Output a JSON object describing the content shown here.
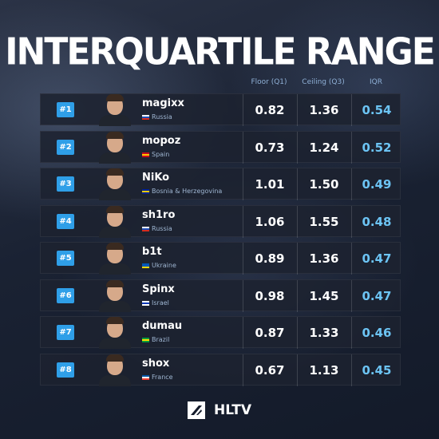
{
  "title": "INTERQUARTILE RANGE",
  "columns": {
    "floor": "Floor (Q1)",
    "ceiling": "Ceiling (Q3)",
    "iqr": "IQR"
  },
  "players": [
    {
      "rank": "#1",
      "name": "magixx",
      "country": "Russia",
      "floor": "0.82",
      "ceiling": "1.36",
      "iqr": "0.54",
      "flag": [
        "#ffffff",
        "#1c4fb8",
        "#d52b1e"
      ]
    },
    {
      "rank": "#2",
      "name": "mopoz",
      "country": "Spain",
      "floor": "0.73",
      "ceiling": "1.24",
      "iqr": "0.52",
      "flag": [
        "#c60b1e",
        "#ffc400",
        "#c60b1e"
      ]
    },
    {
      "rank": "#3",
      "name": "NiKo",
      "country": "Bosnia & Herzegovina",
      "floor": "1.01",
      "ceiling": "1.50",
      "iqr": "0.49",
      "flag": [
        "#002395",
        "#fecb00",
        "#002395"
      ]
    },
    {
      "rank": "#4",
      "name": "sh1ro",
      "country": "Russia",
      "floor": "1.06",
      "ceiling": "1.55",
      "iqr": "0.48",
      "flag": [
        "#ffffff",
        "#1c4fb8",
        "#d52b1e"
      ]
    },
    {
      "rank": "#5",
      "name": "b1t",
      "country": "Ukraine",
      "floor": "0.89",
      "ceiling": "1.36",
      "iqr": "0.47",
      "flag": [
        "#0057b7",
        "#0057b7",
        "#ffd700"
      ]
    },
    {
      "rank": "#6",
      "name": "Spinx",
      "country": "Israel",
      "floor": "0.98",
      "ceiling": "1.45",
      "iqr": "0.47",
      "flag": [
        "#ffffff",
        "#0038b8",
        "#ffffff"
      ]
    },
    {
      "rank": "#7",
      "name": "dumau",
      "country": "Brazil",
      "floor": "0.87",
      "ceiling": "1.33",
      "iqr": "0.46",
      "flag": [
        "#009c3b",
        "#ffdf00",
        "#009c3b"
      ]
    },
    {
      "rank": "#8",
      "name": "shox",
      "country": "France",
      "floor": "0.67",
      "ceiling": "1.13",
      "iqr": "0.45",
      "flag": [
        "#0055a4",
        "#ffffff",
        "#ef4135"
      ]
    }
  ],
  "logo": {
    "text": "HLTV",
    "icon": "hltv-logo-icon"
  },
  "colors": {
    "rank_badge": "#2f9fe8",
    "iqr_value": "#6cc4f4",
    "header_text": "#8fb0d6"
  }
}
